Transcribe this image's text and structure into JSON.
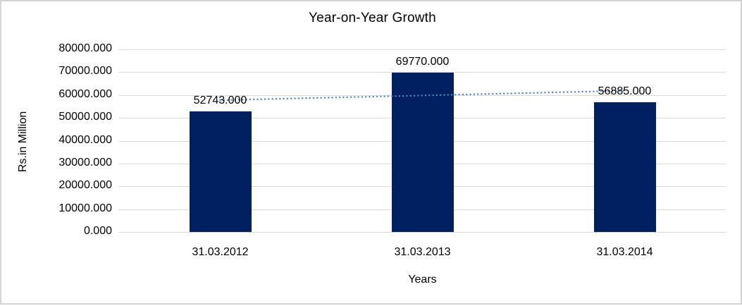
{
  "chart_data": {
    "type": "bar",
    "title": "Year-on-Year Growth",
    "xlabel": "Years",
    "ylabel": "Rs.in Million",
    "categories": [
      "31.03.2012",
      "31.03.2013",
      "31.03.2014"
    ],
    "series": [
      {
        "name": "Rs.in Million",
        "values": [
          52743,
          69770,
          56885
        ]
      }
    ],
    "value_labels": [
      "52743.000",
      "69770.000",
      "56885.000"
    ],
    "ylim": [
      0,
      80000
    ],
    "yticks": [
      {
        "value": 0,
        "label": "0.000"
      },
      {
        "value": 10000,
        "label": "10000.000"
      },
      {
        "value": 20000,
        "label": "20000.000"
      },
      {
        "value": 30000,
        "label": "30000.000"
      },
      {
        "value": 40000,
        "label": "40000.000"
      },
      {
        "value": 50000,
        "label": "50000.000"
      },
      {
        "value": 60000,
        "label": "60000.000"
      },
      {
        "value": 70000,
        "label": "70000.000"
      },
      {
        "value": 80000,
        "label": "80000.000"
      }
    ],
    "grid": true,
    "legend": "none",
    "trendline": {
      "type": "linear",
      "style": "dotted",
      "color": "#4a86c8"
    },
    "colors": {
      "bar": "#002060",
      "gridline": "#d9d9d9",
      "frame_border": "#d4d4d4",
      "text": "#000000",
      "background": "#ffffff"
    }
  }
}
